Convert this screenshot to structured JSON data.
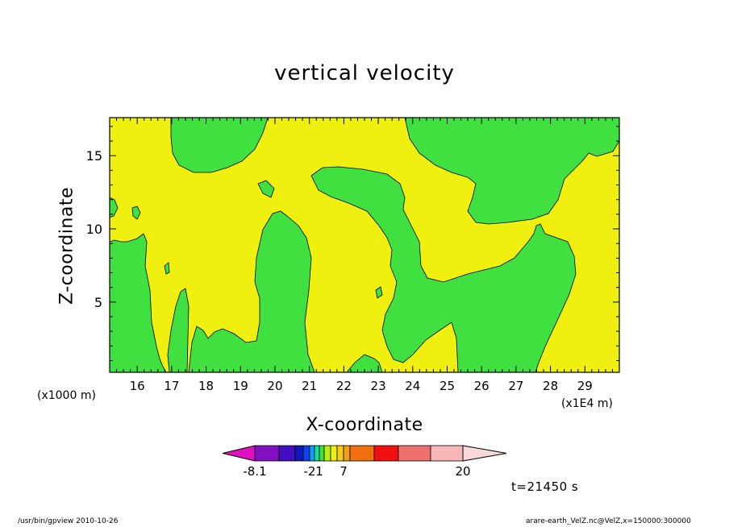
{
  "chart_data": {
    "type": "heatmap",
    "title": "vertical velocity",
    "xlabel": "X-coordinate",
    "ylabel": "Z-coordinate",
    "x_unit": "(x1E4 m)",
    "y_unit": "(x1000 m)",
    "xlim": [
      15.2,
      30.0
    ],
    "ylim": [
      0.2,
      17.6
    ],
    "x_ticks": [
      16,
      17,
      18,
      19,
      20,
      21,
      22,
      23,
      24,
      25,
      26,
      27,
      28,
      29
    ],
    "y_ticks": [
      5,
      10,
      15
    ],
    "time_label": "t=21450 s",
    "field_levels": {
      "background": "yellow: 1 to 2",
      "patches": "green: -2 to 1"
    },
    "colorbar": {
      "colors": [
        "#e010c0",
        "#8010c0",
        "#4010c0",
        "#1018b8",
        "#1040f0",
        "#10a0f0",
        "#10e0a0",
        "#40e040",
        "#b8f010",
        "#f0f010",
        "#f0d010",
        "#f0a010",
        "#f07010",
        "#f01010",
        "#f07070",
        "#f8b8b8",
        "#f8d8d8"
      ],
      "labels": [
        {
          "text": "-8.1",
          "index": 1
        },
        {
          "text": "-2",
          "index": 5
        },
        {
          "text": "1",
          "index": 7
        },
        {
          "text": "7",
          "index": 11
        },
        {
          "text": "20",
          "index": 16
        }
      ]
    },
    "colors": {
      "positive_small": "#f0f010",
      "negative_small": "#40e040"
    }
  },
  "footer": {
    "left": "/usr/bin/gpview   2010-10-26",
    "right": "arare-earth_VelZ.nc@VelZ,x=150000:300000"
  }
}
